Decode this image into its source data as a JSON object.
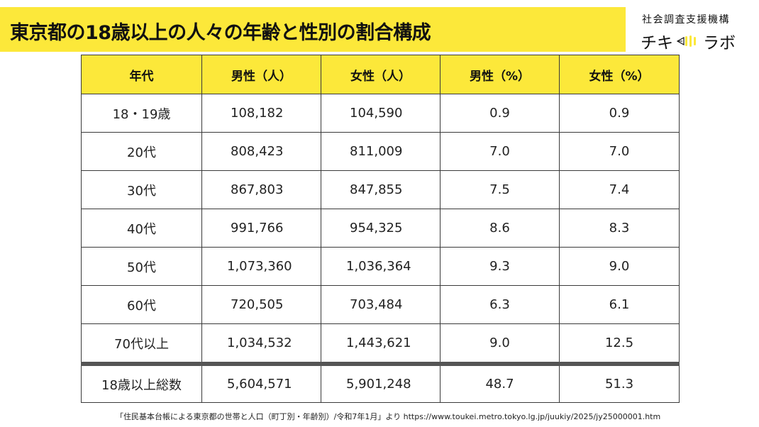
{
  "title": "東京都の18歳以上の人々の年齢と性別の割合構成",
  "logo": {
    "subtitle": "社会調査支援機構",
    "name_left": "チキ",
    "name_right": "ラボ"
  },
  "table": {
    "headers": [
      "年代",
      "男性（人）",
      "女性（人）",
      "男性（%）",
      "女性（%）"
    ],
    "rows": [
      [
        "18・19歳",
        "108,182",
        "104,590",
        "0.9",
        "0.9"
      ],
      [
        "20代",
        "808,423",
        "811,009",
        "7.0",
        "7.0"
      ],
      [
        "30代",
        "867,803",
        "847,855",
        "7.5",
        "7.4"
      ],
      [
        "40代",
        "991,766",
        "954,325",
        "8.6",
        "8.3"
      ],
      [
        "50代",
        "1,073,360",
        "1,036,364",
        "9.3",
        "9.0"
      ],
      [
        "60代",
        "720,505",
        "703,484",
        "6.3",
        "6.1"
      ],
      [
        "70代以上",
        "1,034,532",
        "1,443,621",
        "9.0",
        "12.5"
      ]
    ],
    "total": [
      "18歳以上総数",
      "5,604,571",
      "5,901,248",
      "48.7",
      "51.3"
    ]
  },
  "source": "「住民基本台帳による東京都の世帯と人口（町丁別・年齢別）/令和7年1月」より https://www.toukei.metro.tokyo.lg.jp/juukiy/2025/jy25000001.htm",
  "colors": {
    "accent_yellow": "#fce83a",
    "border": "#3a3a3a",
    "text": "#1a1a1a"
  }
}
